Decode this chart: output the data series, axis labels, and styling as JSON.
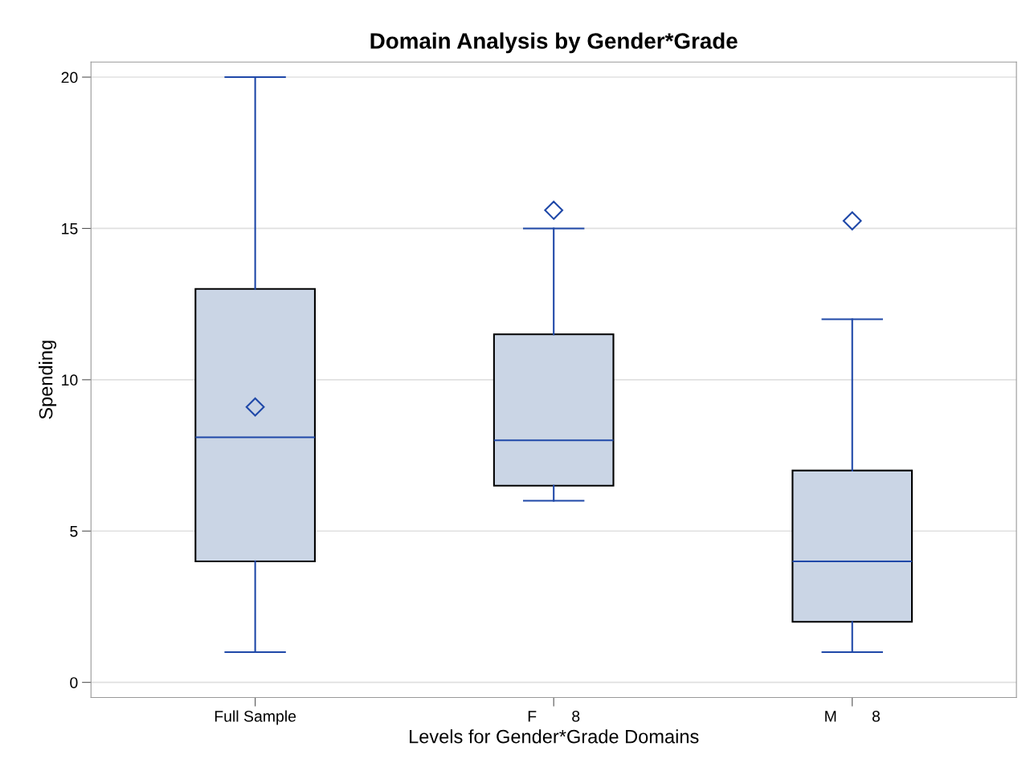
{
  "chart_data": {
    "type": "box",
    "title": "Domain Analysis by Gender*Grade",
    "xlabel": "Levels for Gender*Grade Domains",
    "ylabel": "Spending",
    "categories": [
      "Full Sample",
      "F        8",
      "M        8"
    ],
    "series": [
      {
        "color": "#cad5e5",
        "boxes": [
          {
            "low": 1,
            "q1": 4,
            "median": 8.1,
            "q3": 13,
            "high": 20,
            "mean": 9.1
          },
          {
            "low": 6,
            "q1": 6.5,
            "median": 8,
            "q3": 11.5,
            "high": 15,
            "mean": 15.6
          },
          {
            "low": 1,
            "q1": 2,
            "median": 4,
            "q3": 7,
            "high": 12,
            "mean": 15.25
          }
        ]
      }
    ],
    "ylim": [
      -0.5,
      20.5
    ],
    "yticks": [
      0,
      5,
      10,
      15,
      20
    ],
    "grid": "y",
    "marker": "diamond"
  }
}
